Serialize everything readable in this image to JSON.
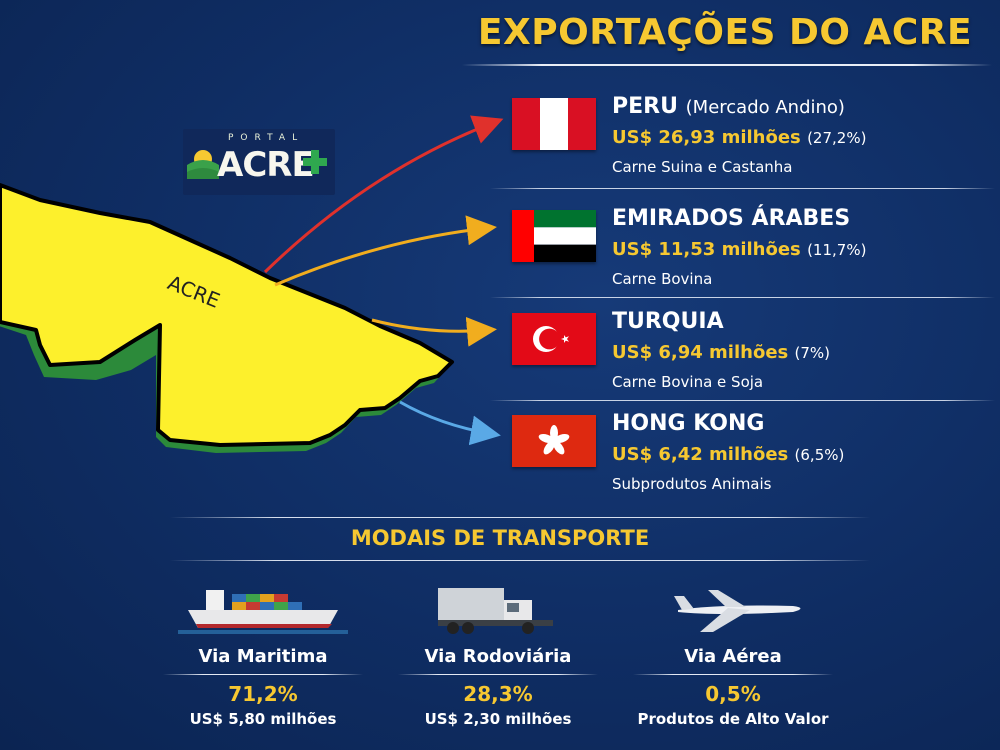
{
  "title": "EXPORTAÇÕES DO ACRE",
  "logo": {
    "portal": "PORTAL",
    "name": "ACRE"
  },
  "map": {
    "label": "ACRE"
  },
  "countries": [
    {
      "name": "PERU",
      "subtitle": "(Mercado Andino)",
      "value": "US$ 26,93 milhões",
      "percent": "(27,2%)",
      "product": "Carne Suina e Castanha",
      "arrow_color": "#e0312c"
    },
    {
      "name": "EMIRADOS ÁRABES",
      "subtitle": "",
      "value": "US$ 11,53 milhões",
      "percent": "(11,7%)",
      "product": "Carne Bovina",
      "arrow_color": "#f1ad1e"
    },
    {
      "name": "TURQUIA",
      "subtitle": "",
      "value": "US$ 6,94 milhões",
      "percent": "(7%)",
      "product": "Carne Bovina e Soja",
      "arrow_color": "#f1ad1e"
    },
    {
      "name": "HONG KONG",
      "subtitle": "",
      "value": "US$ 6,42 milhões",
      "percent": "(6,5%)",
      "product": "Subprodutos Animais",
      "arrow_color": "#5aa9e6"
    }
  ],
  "modais": {
    "title": "MODAIS DE TRANSPORTE",
    "items": [
      {
        "label": "Via Maritima",
        "percent": "71,2%",
        "value": "US$ 5,80 milhões",
        "icon": "ship-icon"
      },
      {
        "label": "Via Rodoviária",
        "percent": "28,3%",
        "value": "US$ 2,30 milhões",
        "icon": "truck-icon"
      },
      {
        "label": "Via Aérea",
        "percent": "0,5%",
        "value": "Produtos de Alto Valor",
        "icon": "airplane-icon"
      }
    ]
  },
  "colors": {
    "background": "#0f2d63",
    "accent": "#f6c831",
    "map_fill": "#fdf02c"
  }
}
